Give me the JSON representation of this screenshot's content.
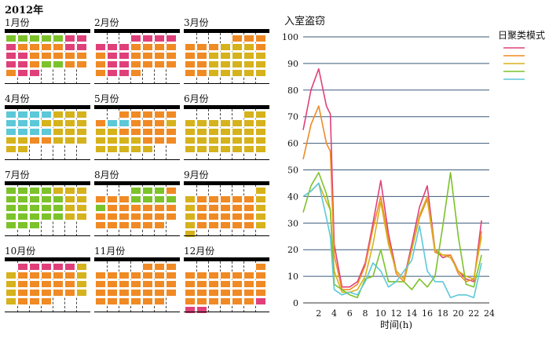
{
  "year_title": "2012年",
  "months": [
    {
      "label": "1月份",
      "start": 0,
      "days": 31,
      "pattern": [
        4,
        4,
        4,
        4,
        4,
        1,
        1,
        1,
        2,
        2,
        2,
        2,
        1,
        1,
        1,
        1,
        2,
        2,
        2,
        2,
        2,
        1,
        1,
        2,
        4,
        4,
        2,
        2,
        2,
        1,
        1
      ]
    },
    {
      "label": "2月份",
      "start": 3,
      "days": 29,
      "pattern": [
        1,
        1,
        1,
        1,
        1,
        1,
        1,
        2,
        2,
        2,
        2,
        2,
        1,
        1,
        2,
        2,
        2,
        2,
        2,
        1,
        1,
        2,
        2,
        2,
        2,
        2,
        1,
        1,
        2
      ]
    },
    {
      "label": "3月份",
      "start": 4,
      "days": 31,
      "pattern": [
        2,
        2,
        2,
        2,
        2,
        2,
        3,
        3,
        3,
        2,
        2,
        2,
        3,
        3,
        3,
        3,
        3,
        2,
        2,
        3,
        3,
        3,
        3,
        3,
        2,
        2,
        3,
        3,
        3,
        3,
        3
      ]
    },
    {
      "label": "4月份",
      "start": 0,
      "days": 30,
      "pattern": [
        5,
        5,
        5,
        5,
        3,
        3,
        3,
        5,
        5,
        5,
        3,
        3,
        3,
        3,
        5,
        5,
        5,
        5,
        3,
        3,
        3,
        3,
        3,
        2,
        2,
        3,
        3,
        3,
        3,
        3
      ]
    },
    {
      "label": "5月份",
      "start": 2,
      "days": 31,
      "pattern": [
        2,
        2,
        2,
        2,
        2,
        2,
        5,
        5,
        2,
        2,
        2,
        3,
        3,
        3,
        2,
        2,
        2,
        2,
        2,
        3,
        3,
        3,
        3,
        2,
        2,
        2,
        3,
        3,
        3,
        3,
        3
      ]
    },
    {
      "label": "6月份",
      "start": 5,
      "days": 30,
      "pattern": [
        3,
        3,
        3,
        3,
        3,
        3,
        3,
        3,
        3,
        3,
        3,
        3,
        3,
        3,
        3,
        3,
        3,
        3,
        3,
        3,
        3,
        3,
        3,
        3,
        3,
        3,
        3,
        3,
        3,
        3
      ]
    },
    {
      "label": "7月份",
      "start": 0,
      "days": 31,
      "pattern": [
        4,
        4,
        4,
        4,
        3,
        3,
        3,
        4,
        4,
        4,
        4,
        4,
        3,
        3,
        4,
        4,
        4,
        4,
        4,
        3,
        3,
        4,
        4,
        4,
        4,
        4,
        3,
        3,
        4,
        4,
        4
      ]
    },
    {
      "label": "8月份",
      "start": 3,
      "days": 31,
      "pattern": [
        4,
        4,
        4,
        2,
        2,
        2,
        2,
        4,
        4,
        4,
        4,
        4,
        2,
        2,
        2,
        2,
        2,
        2,
        2,
        2,
        2,
        2,
        2,
        2,
        2,
        2,
        2,
        2,
        2,
        2,
        2
      ]
    },
    {
      "label": "9月份",
      "start": 6,
      "days": 30,
      "pattern": [
        3,
        3,
        2,
        2,
        2,
        2,
        2,
        3,
        3,
        2,
        2,
        2,
        2,
        2,
        3,
        3,
        2,
        2,
        2,
        2,
        2,
        3,
        3,
        2,
        2,
        2,
        2,
        2,
        3,
        3
      ]
    },
    {
      "label": "10月份",
      "start": 1,
      "days": 31,
      "pattern": [
        1,
        1,
        1,
        1,
        1,
        3,
        3,
        2,
        2,
        2,
        2,
        2,
        3,
        3,
        2,
        2,
        2,
        2,
        2,
        3,
        3,
        2,
        2,
        2,
        2,
        2,
        3,
        3,
        2,
        2,
        2
      ]
    },
    {
      "label": "11月份",
      "start": 4,
      "days": 30,
      "pattern": [
        2,
        2,
        2,
        2,
        2,
        2,
        2,
        2,
        2,
        2,
        2,
        2,
        2,
        2,
        2,
        2,
        2,
        2,
        2,
        2,
        2,
        2,
        2,
        2,
        2,
        2,
        2,
        2,
        2,
        2
      ]
    },
    {
      "label": "12月份",
      "start": 6,
      "days": 31,
      "pattern": [
        2,
        2,
        2,
        2,
        2,
        2,
        2,
        2,
        2,
        2,
        2,
        2,
        2,
        2,
        2,
        2,
        2,
        2,
        2,
        2,
        2,
        2,
        2,
        2,
        2,
        2,
        2,
        2,
        1,
        1,
        1
      ]
    }
  ],
  "colors": {
    "1": "#e0407a",
    "2": "#f08a24",
    "3": "#d6b21c",
    "4": "#7cc22a",
    "5": "#5cc8d8"
  },
  "chart_data": {
    "type": "line",
    "title": "入室盗窃",
    "legend_title": "日聚类模式",
    "xlabel": "时间(h)",
    "ylabel": "",
    "xlim": [
      0,
      24
    ],
    "ylim": [
      0,
      100
    ],
    "xticks": [
      2,
      4,
      6,
      8,
      10,
      12,
      14,
      16,
      18,
      20,
      22,
      24
    ],
    "yticks": [
      0,
      10,
      20,
      30,
      40,
      50,
      60,
      70,
      80,
      90,
      100
    ],
    "grid": "horizontal",
    "legend_position": "top-right",
    "series": [
      {
        "color": "#e0407a",
        "x": [
          0,
          1,
          2,
          3,
          3.5,
          4,
          5,
          6,
          7,
          8,
          9,
          10,
          11,
          12,
          13,
          14,
          15,
          16,
          17,
          18,
          19,
          20,
          21,
          22,
          23
        ],
        "values": [
          65,
          80,
          88,
          74,
          71,
          22,
          6,
          6,
          8,
          15,
          30,
          46,
          26,
          12,
          9,
          22,
          36,
          44,
          20,
          17,
          18,
          12,
          9,
          8,
          31
        ]
      },
      {
        "color": "#f08a24",
        "x": [
          0,
          1,
          2,
          3,
          3.5,
          4,
          5,
          6,
          7,
          8,
          9,
          10,
          11,
          12,
          13,
          14,
          15,
          16,
          17,
          18,
          19,
          20,
          21,
          22,
          23
        ],
        "values": [
          54,
          67,
          74,
          60,
          57,
          18,
          5,
          5,
          7,
          14,
          28,
          40,
          24,
          11,
          8,
          20,
          32,
          39,
          19,
          18,
          18,
          11,
          8,
          9,
          27
        ]
      },
      {
        "color": "#d6b21c",
        "x": [
          0,
          1,
          2,
          3,
          3.5,
          4,
          5,
          6,
          7,
          8,
          9,
          10,
          11,
          12,
          13,
          14,
          15,
          16,
          17,
          18,
          19,
          20,
          21,
          22,
          23
        ],
        "values": [
          40,
          42,
          45,
          38,
          35,
          12,
          4,
          4,
          5,
          10,
          22,
          38,
          22,
          12,
          9,
          20,
          33,
          40,
          20,
          18,
          17,
          12,
          10,
          9,
          25
        ]
      },
      {
        "color": "#7cc22a",
        "x": [
          0,
          1,
          2,
          3,
          3.5,
          4,
          5,
          6,
          7,
          8,
          9,
          10,
          11,
          12,
          13,
          14,
          15,
          16,
          17,
          18,
          19,
          20,
          21,
          22,
          23
        ],
        "values": [
          34,
          44,
          49,
          41,
          35,
          7,
          5,
          3,
          2,
          9,
          10,
          20,
          8,
          8,
          8,
          5,
          9,
          6,
          10,
          29,
          49,
          25,
          7,
          6,
          18
        ]
      },
      {
        "color": "#5cc8d8",
        "x": [
          0,
          1,
          2,
          3,
          3.5,
          4,
          5,
          6,
          7,
          8,
          9,
          10,
          11,
          12,
          13,
          14,
          15,
          16,
          17,
          18,
          19,
          20,
          21,
          22,
          23
        ],
        "values": [
          40,
          42,
          45,
          32,
          25,
          5,
          3,
          4,
          3,
          8,
          15,
          12,
          6,
          8,
          12,
          16,
          29,
          12,
          8,
          8,
          2,
          3,
          3,
          2,
          15
        ]
      }
    ]
  }
}
